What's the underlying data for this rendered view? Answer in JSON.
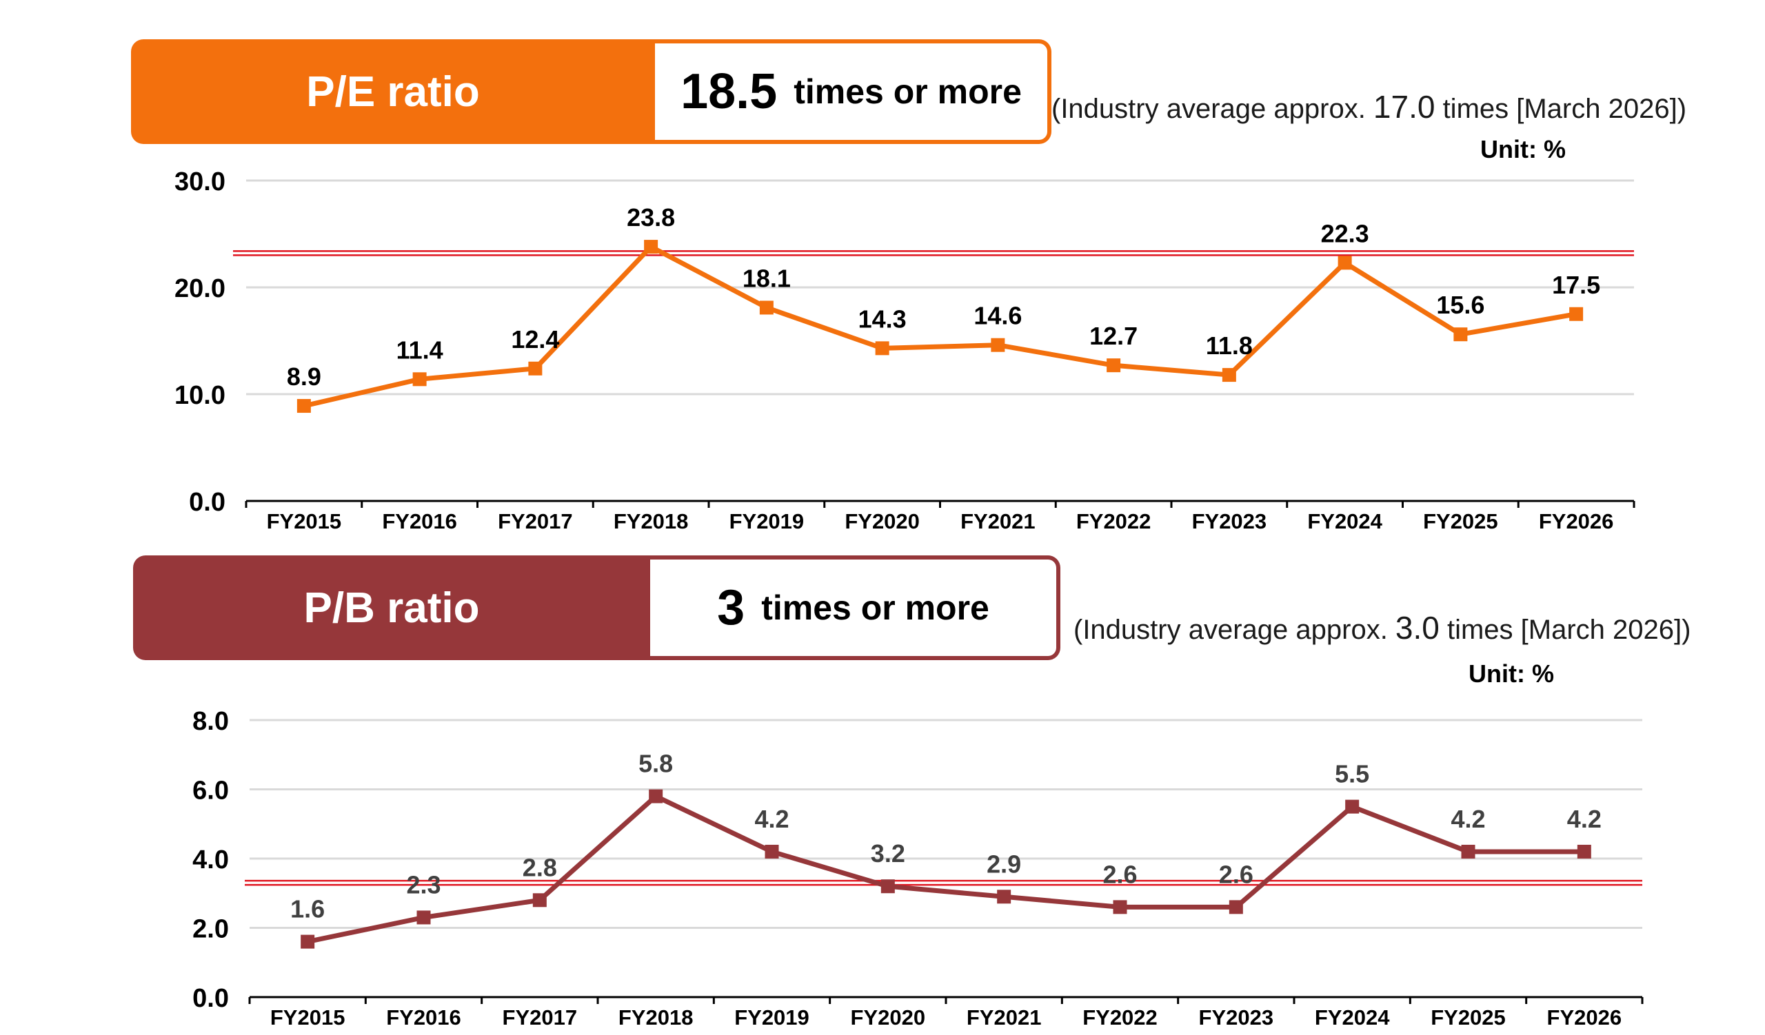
{
  "pe": {
    "banner_label": "P/E ratio",
    "banner_value": "18.5",
    "banner_suffix": "times or more",
    "industry_prefix": "(Industry average approx. ",
    "industry_value": "17.0",
    "industry_suffix": " times [March 2026])",
    "unit": "Unit: %",
    "color": "#f3700d",
    "ref_color": "#e0151f"
  },
  "pb": {
    "banner_label": "P/B ratio",
    "banner_value": "3",
    "banner_suffix": "times or more",
    "industry_prefix": "(Industry average approx. ",
    "industry_value": "3.0",
    "industry_suffix": " times [March 2026])",
    "unit": "Unit: %",
    "color": "#96373a",
    "ref_color": "#e0151f"
  },
  "chart_data": [
    {
      "type": "line",
      "categories": [
        "FY2015",
        "FY2016",
        "FY2017",
        "FY2018",
        "FY2019",
        "FY2020",
        "FY2021",
        "FY2022",
        "FY2023",
        "FY2024",
        "FY2025",
        "FY2026"
      ],
      "values": [
        8.9,
        11.4,
        12.4,
        23.8,
        18.1,
        14.3,
        14.6,
        12.7,
        11.8,
        22.3,
        15.6,
        17.5
      ],
      "data_labels": [
        "8.9",
        "11.4",
        "12.4",
        "23.8",
        "18.1",
        "14.3",
        "14.6",
        "12.7",
        "11.8",
        "22.3",
        "15.6",
        "17.5"
      ],
      "ylim": [
        0,
        30
      ],
      "yticks": [
        "0.0",
        "10.0",
        "20.0",
        "30.0"
      ],
      "reference_line": 23.2,
      "grid": true,
      "marker": "square",
      "color": "#f3700d"
    },
    {
      "type": "line",
      "categories": [
        "FY2015",
        "FY2016",
        "FY2017",
        "FY2018",
        "FY2019",
        "FY2020",
        "FY2021",
        "FY2022",
        "FY2023",
        "FY2024",
        "FY2025",
        "FY2026"
      ],
      "values": [
        1.6,
        2.3,
        2.8,
        5.8,
        4.2,
        3.2,
        2.9,
        2.6,
        2.6,
        5.5,
        4.2,
        4.2
      ],
      "data_labels": [
        "1.6",
        "2.3",
        "2.8",
        "5.8",
        "4.2",
        "3.2",
        "2.9",
        "2.6",
        "2.6",
        "5.5",
        "4.2",
        "4.2"
      ],
      "ylim": [
        0,
        8
      ],
      "yticks": [
        "0.0",
        "2.0",
        "4.0",
        "6.0",
        "8.0"
      ],
      "reference_line": 3.3,
      "grid": true,
      "marker": "square",
      "color": "#96373a"
    }
  ]
}
